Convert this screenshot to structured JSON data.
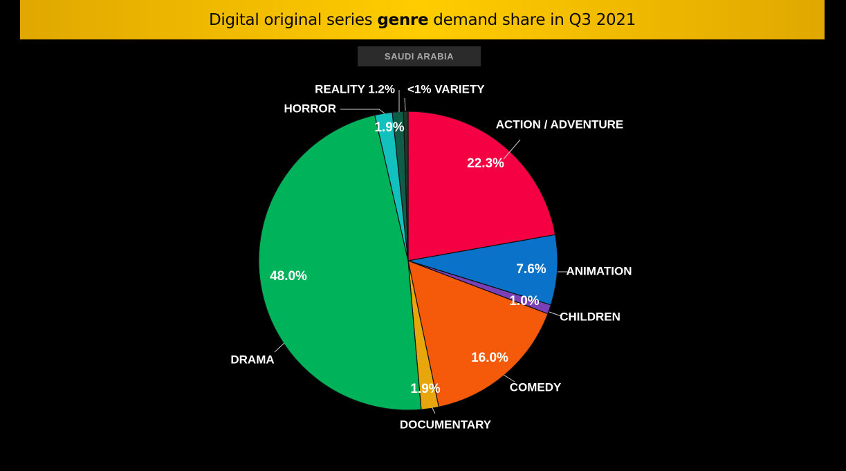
{
  "header": {
    "title_pre": "Digital original series ",
    "title_bold": "genre",
    "title_post": " demand share in Q3 2021",
    "market": "SAUDI ARABIA"
  },
  "chart_data": {
    "type": "pie",
    "title": "Digital original series genre demand share in Q3 2021",
    "subtitle": "SAUDI ARABIA",
    "start_angle_deg": 0,
    "direction": "clockwise",
    "slices": [
      {
        "key": "action",
        "label": "ACTION / ADVENTURE",
        "value": 22.3,
        "display": "22.3%",
        "color": "#f50043"
      },
      {
        "key": "animation",
        "label": "ANIMATION",
        "value": 7.6,
        "display": "7.6%",
        "color": "#0a72c9"
      },
      {
        "key": "children",
        "label": "CHILDREN",
        "value": 1.0,
        "display": "1.0%",
        "color": "#7b3fb6"
      },
      {
        "key": "comedy",
        "label": "COMEDY",
        "value": 16.0,
        "display": "16.0%",
        "color": "#f45a0a"
      },
      {
        "key": "documentary",
        "label": "DOCUMENTARY",
        "value": 1.9,
        "display": "1.9%",
        "color": "#e7a70c"
      },
      {
        "key": "drama",
        "label": "DRAMA",
        "value": 48.0,
        "display": "48.0%",
        "color": "#00b259"
      },
      {
        "key": "horror",
        "label": "HORROR",
        "value": 1.9,
        "display": "1.9%",
        "color": "#12c1bd"
      },
      {
        "key": "reality",
        "label": "REALITY",
        "value": 1.2,
        "display": "1.2%",
        "color": "#0f5d48"
      },
      {
        "key": "variety",
        "label": "VARIETY",
        "value": 0.5,
        "display": "<1%",
        "color": "#1c3a2a"
      }
    ]
  }
}
